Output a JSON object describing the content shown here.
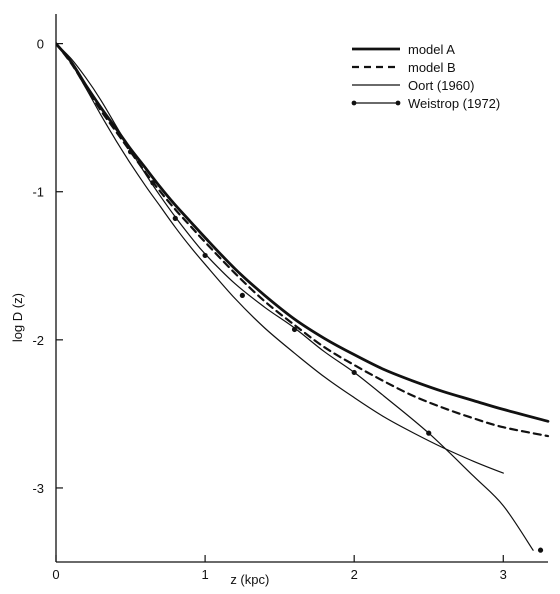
{
  "chart_data": {
    "type": "line",
    "title": "",
    "xlabel": "z (kpc)",
    "ylabel": "log D (z)",
    "xlim": [
      0,
      3.3
    ],
    "ylim": [
      -3.5,
      0.2
    ],
    "x_ticks": [
      0,
      1,
      2,
      3
    ],
    "x_tick_labels": [
      "0",
      "1",
      "2",
      "3"
    ],
    "y_ticks": [
      0,
      -1,
      -2,
      -3
    ],
    "y_tick_labels": [
      "0",
      "-1",
      "-2",
      "-3"
    ],
    "grid": false,
    "legend_position": "top-right",
    "series": [
      {
        "name": "model A",
        "style": "thick-solid",
        "color": "#111111",
        "points": [
          [
            0,
            0
          ],
          [
            0.1,
            -0.12
          ],
          [
            0.2,
            -0.28
          ],
          [
            0.3,
            -0.43
          ],
          [
            0.4,
            -0.57
          ],
          [
            0.5,
            -0.71
          ],
          [
            0.6,
            -0.84
          ],
          [
            0.7,
            -0.97
          ],
          [
            0.8,
            -1.09
          ],
          [
            0.9,
            -1.2
          ],
          [
            1.0,
            -1.31
          ],
          [
            1.2,
            -1.52
          ],
          [
            1.4,
            -1.7
          ],
          [
            1.6,
            -1.86
          ],
          [
            1.8,
            -1.99
          ],
          [
            2.0,
            -2.1
          ],
          [
            2.2,
            -2.2
          ],
          [
            2.4,
            -2.28
          ],
          [
            2.6,
            -2.35
          ],
          [
            2.8,
            -2.41
          ],
          [
            3.0,
            -2.47
          ],
          [
            3.3,
            -2.55
          ]
        ]
      },
      {
        "name": "model B",
        "style": "dashed",
        "color": "#111111",
        "points": [
          [
            0,
            0
          ],
          [
            0.1,
            -0.13
          ],
          [
            0.2,
            -0.29
          ],
          [
            0.3,
            -0.45
          ],
          [
            0.4,
            -0.59
          ],
          [
            0.5,
            -0.73
          ],
          [
            0.6,
            -0.87
          ],
          [
            0.7,
            -1.0
          ],
          [
            0.8,
            -1.12
          ],
          [
            0.9,
            -1.23
          ],
          [
            1.0,
            -1.34
          ],
          [
            1.2,
            -1.55
          ],
          [
            1.4,
            -1.74
          ],
          [
            1.6,
            -1.9
          ],
          [
            1.8,
            -2.05
          ],
          [
            2.0,
            -2.17
          ],
          [
            2.2,
            -2.28
          ],
          [
            2.4,
            -2.38
          ],
          [
            2.6,
            -2.46
          ],
          [
            2.8,
            -2.53
          ],
          [
            3.0,
            -2.59
          ],
          [
            3.3,
            -2.65
          ]
        ]
      },
      {
        "name": "Oort (1960)",
        "style": "thin-solid",
        "color": "#111111",
        "points": [
          [
            0,
            0
          ],
          [
            0.1,
            -0.13
          ],
          [
            0.2,
            -0.3
          ],
          [
            0.3,
            -0.48
          ],
          [
            0.4,
            -0.65
          ],
          [
            0.5,
            -0.81
          ],
          [
            0.6,
            -0.96
          ],
          [
            0.7,
            -1.1
          ],
          [
            0.8,
            -1.24
          ],
          [
            0.9,
            -1.37
          ],
          [
            1.0,
            -1.49
          ],
          [
            1.2,
            -1.72
          ],
          [
            1.4,
            -1.92
          ],
          [
            1.6,
            -2.09
          ],
          [
            1.8,
            -2.25
          ],
          [
            2.0,
            -2.39
          ],
          [
            2.2,
            -2.52
          ],
          [
            2.4,
            -2.63
          ],
          [
            2.6,
            -2.73
          ],
          [
            2.8,
            -2.82
          ],
          [
            3.0,
            -2.9
          ]
        ]
      },
      {
        "name": "Weistrop (1972)",
        "style": "dots-solid",
        "color": "#111111",
        "points": [
          [
            0,
            0
          ],
          [
            0.1,
            -0.1
          ],
          [
            0.2,
            -0.23
          ],
          [
            0.3,
            -0.38
          ],
          [
            0.4,
            -0.55
          ],
          [
            0.5,
            -0.72
          ],
          [
            0.6,
            -0.88
          ],
          [
            0.7,
            -1.03
          ],
          [
            0.8,
            -1.17
          ],
          [
            0.9,
            -1.3
          ],
          [
            1.0,
            -1.42
          ],
          [
            1.2,
            -1.62
          ],
          [
            1.4,
            -1.78
          ],
          [
            1.6,
            -1.92
          ],
          [
            1.8,
            -2.08
          ],
          [
            2.0,
            -2.22
          ],
          [
            2.2,
            -2.38
          ],
          [
            2.5,
            -2.63
          ],
          [
            2.8,
            -2.92
          ],
          [
            3.0,
            -3.12
          ],
          [
            3.2,
            -3.42
          ]
        ],
        "markers": [
          [
            0.5,
            -0.73
          ],
          [
            0.65,
            -0.94
          ],
          [
            0.8,
            -1.18
          ],
          [
            1.0,
            -1.43
          ],
          [
            1.25,
            -1.7
          ],
          [
            1.6,
            -1.93
          ],
          [
            2.0,
            -2.22
          ],
          [
            2.5,
            -2.63
          ],
          [
            3.25,
            -3.42
          ]
        ]
      }
    ]
  }
}
